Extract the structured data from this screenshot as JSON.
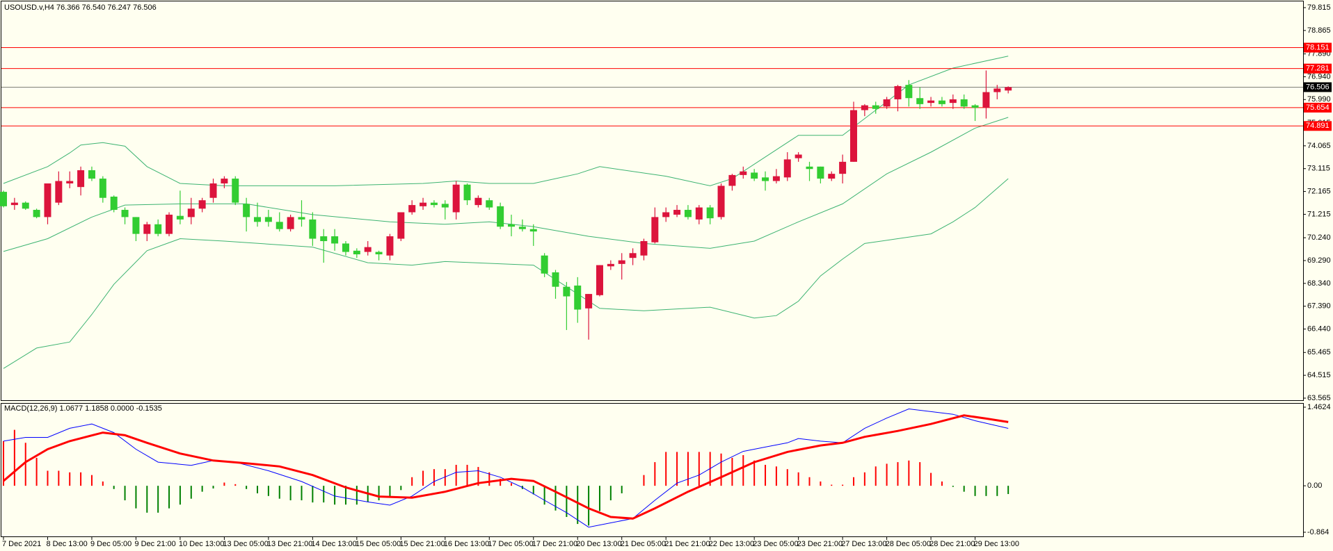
{
  "chart_data": [
    {
      "type": "candlestick",
      "title": "USOUSD.v,H4  76.366 76.540 76.247 76.506",
      "categories": [
        "7 Dec 2021",
        null,
        null,
        null,
        "8 Dec 13:00",
        null,
        null,
        null,
        "9 Dec 05:00",
        null,
        null,
        null,
        "9 Dec 21:00",
        null,
        null,
        null,
        "10 Dec 13:00",
        null,
        null,
        null,
        "13 Dec 05:00",
        null,
        null,
        null,
        "13 Dec 21:00",
        null,
        null,
        null,
        "14 Dec 13:00",
        null,
        null,
        null,
        "15 Dec 05:00",
        null,
        null,
        null,
        "15 Dec 21:00",
        null,
        null,
        null,
        "16 Dec 13:00",
        null,
        null,
        null,
        "17 Dec 05:00",
        null,
        null,
        null,
        "17 Dec 21:00",
        null,
        null,
        null,
        "20 Dec 13:00",
        null,
        null,
        null,
        "21 Dec 05:00",
        null,
        null,
        null,
        "21 Dec 21:00",
        null,
        null,
        null,
        "22 Dec 13:00",
        null,
        null,
        null,
        "23 Dec 05:00",
        null,
        null,
        null,
        "23 Dec 21:00",
        null,
        null,
        null,
        "27 Dec 13:00",
        null,
        null,
        null,
        "28 Dec 05:00",
        null,
        null,
        null,
        "28 Dec 21:00",
        null,
        null,
        null,
        "29 Dec 13:00",
        null,
        null,
        null
      ],
      "open": [
        72.15,
        71.6,
        71.7,
        71.4,
        71.1,
        71.7,
        72.5,
        72.35,
        73.05,
        72.7,
        71.95,
        71.4,
        71.1,
        70.4,
        70.8,
        70.4,
        71.15,
        71.1,
        71.45,
        71.9,
        72.5,
        72.7,
        71.65,
        71.1,
        71.1,
        70.9,
        70.6,
        71.1,
        71.0,
        70.3,
        70.3,
        70.0,
        69.7,
        69.65,
        69.65,
        69.5,
        70.2,
        71.3,
        71.55,
        71.7,
        71.65,
        71.3,
        72.45,
        71.6,
        71.8,
        71.55,
        70.8,
        70.7,
        70.6,
        69.5,
        68.8,
        68.2,
        68.25,
        67.3,
        67.85,
        69.05,
        69.15,
        69.4,
        69.5,
        70.05,
        71.1,
        71.2,
        71.4,
        71.0,
        71.5,
        71.1,
        72.4,
        72.85,
        72.95,
        72.75,
        72.6,
        72.75,
        73.55,
        73.2,
        73.2,
        72.7,
        72.9,
        73.4,
        75.55,
        75.75,
        75.7,
        76.0,
        76.6,
        76.05,
        75.85,
        75.95,
        75.85,
        76.0,
        75.75,
        75.65,
        76.3,
        76.366
      ],
      "high": [
        72.2,
        71.9,
        71.75,
        71.45,
        72.5,
        73.0,
        73.0,
        73.2,
        73.2,
        72.8,
        72.0,
        71.5,
        71.1,
        70.9,
        71.0,
        71.3,
        72.2,
        71.9,
        71.9,
        72.7,
        72.8,
        72.8,
        71.9,
        71.7,
        71.4,
        71.3,
        71.2,
        71.8,
        71.3,
        70.6,
        70.6,
        70.1,
        69.8,
        70.1,
        69.7,
        70.4,
        71.3,
        71.8,
        71.9,
        71.8,
        71.8,
        72.6,
        72.5,
        72.0,
        71.9,
        71.7,
        71.2,
        71.0,
        70.8,
        69.6,
        68.9,
        68.4,
        68.6,
        67.9,
        69.1,
        69.3,
        69.6,
        69.8,
        70.2,
        71.5,
        71.5,
        71.6,
        71.6,
        71.6,
        71.6,
        72.5,
        72.9,
        73.2,
        73.1,
        73.0,
        73.1,
        73.8,
        73.8,
        73.4,
        73.2,
        73.0,
        73.7,
        75.9,
        75.8,
        75.9,
        76.1,
        76.6,
        76.8,
        76.5,
        76.1,
        76.1,
        76.2,
        76.2,
        75.8,
        77.2,
        76.6,
        76.54
      ],
      "low": [
        71.5,
        71.4,
        71.4,
        71.05,
        70.8,
        71.6,
        72.3,
        72.0,
        72.6,
        71.7,
        71.3,
        70.8,
        70.1,
        70.1,
        70.3,
        70.3,
        70.8,
        70.8,
        71.3,
        71.7,
        72.3,
        71.6,
        70.5,
        70.7,
        70.7,
        70.5,
        70.5,
        70.7,
        69.9,
        69.2,
        69.7,
        69.5,
        69.4,
        69.5,
        69.3,
        69.3,
        70.1,
        71.2,
        71.4,
        71.5,
        71.0,
        71.0,
        71.6,
        71.5,
        71.4,
        70.6,
        70.3,
        70.5,
        69.9,
        68.6,
        67.7,
        66.4,
        66.7,
        66.0,
        67.8,
        68.9,
        68.5,
        69.1,
        69.3,
        70.0,
        70.9,
        71.1,
        71.0,
        70.8,
        70.8,
        71.0,
        72.2,
        72.7,
        72.6,
        72.2,
        72.5,
        72.6,
        73.4,
        72.6,
        72.5,
        72.6,
        72.5,
        73.4,
        75.3,
        75.4,
        75.6,
        75.5,
        75.7,
        75.6,
        75.7,
        75.7,
        75.6,
        75.6,
        75.1,
        75.2,
        76.0,
        76.247
      ],
      "close": [
        71.55,
        71.7,
        71.45,
        71.1,
        72.5,
        72.6,
        72.6,
        73.05,
        72.7,
        71.9,
        71.4,
        71.1,
        70.4,
        70.8,
        70.4,
        71.2,
        71.0,
        71.45,
        71.8,
        72.5,
        72.7,
        71.7,
        71.1,
        70.9,
        70.9,
        70.6,
        71.1,
        71.0,
        70.2,
        70.1,
        70.0,
        69.65,
        69.55,
        69.85,
        69.55,
        70.3,
        71.3,
        71.6,
        71.7,
        71.6,
        71.5,
        72.45,
        71.8,
        71.9,
        71.5,
        70.7,
        70.7,
        70.6,
        70.5,
        68.75,
        68.2,
        67.8,
        67.25,
        67.9,
        69.1,
        69.15,
        69.3,
        69.6,
        70.1,
        71.1,
        71.3,
        71.4,
        71.1,
        71.5,
        71.05,
        72.4,
        72.85,
        73.0,
        72.7,
        72.6,
        72.8,
        73.5,
        73.7,
        73.1,
        72.7,
        72.9,
        73.4,
        75.55,
        75.75,
        75.6,
        76.0,
        76.55,
        76.05,
        75.8,
        75.95,
        75.8,
        76.0,
        75.7,
        75.65,
        76.3,
        76.45,
        76.506
      ],
      "up_color": "#dc143c",
      "down_color": "#32cd32",
      "lines": [
        {
          "color": "#3cb371",
          "x": [
            0,
            4,
            6,
            7,
            9,
            11,
            13,
            16,
            20,
            30,
            38,
            41,
            44,
            48,
            52,
            54,
            60,
            64,
            66,
            69,
            72,
            76,
            78,
            80,
            82,
            86,
            91
          ],
          "values": [
            72.5,
            73.2,
            73.77,
            74.1,
            74.2,
            74.05,
            73.2,
            72.5,
            72.4,
            72.4,
            72.5,
            72.6,
            72.5,
            72.5,
            72.9,
            73.2,
            72.8,
            72.4,
            72.7,
            73.6,
            74.5,
            74.5,
            75.2,
            75.9,
            76.6,
            77.3,
            77.8
          ]
        },
        {
          "color": "#3cb371",
          "x": [
            0,
            4,
            8,
            11,
            16,
            22,
            28,
            35,
            40,
            44,
            48,
            53,
            58,
            64,
            68,
            72,
            76,
            80,
            84,
            88,
            91
          ],
          "values": [
            69.67,
            70.2,
            71.1,
            71.6,
            71.65,
            71.65,
            71.2,
            70.9,
            70.8,
            70.9,
            70.7,
            70.3,
            70.0,
            69.8,
            70.1,
            70.9,
            71.65,
            72.9,
            73.8,
            74.8,
            75.25
          ]
        },
        {
          "color": "#3cb371",
          "x": [
            0,
            3,
            6,
            8,
            10,
            13,
            16,
            20,
            28,
            33,
            37,
            40,
            48,
            50,
            54,
            58,
            64,
            68,
            70,
            72,
            74,
            76,
            78,
            81,
            84,
            86,
            88,
            91
          ],
          "values": [
            64.8,
            65.65,
            65.9,
            67.05,
            68.3,
            69.7,
            70.2,
            70.1,
            69.85,
            69.2,
            69.1,
            69.25,
            69.1,
            68.5,
            67.3,
            67.2,
            67.35,
            66.9,
            67.0,
            67.6,
            68.65,
            69.35,
            70.0,
            70.2,
            70.4,
            70.9,
            71.5,
            72.7
          ]
        }
      ],
      "levels": [
        {
          "value": 78.151,
          "color": "#ff0000"
        },
        {
          "value": 77.281,
          "color": "#ff0000"
        },
        {
          "value": 76.506,
          "color": "#000000"
        },
        {
          "value": 75.654,
          "color": "#ff0000"
        },
        {
          "value": 74.891,
          "color": "#ff0000"
        }
      ],
      "ylim": [
        63.565,
        79.815
      ],
      "yticks": [
        79.815,
        78.865,
        {
          "value": 77.89,
          "label": "77.890"
        },
        {
          "value": 76.94,
          "label": "76.940"
        },
        {
          "value": 75.99,
          "label": "75.990"
        },
        75.015,
        74.065,
        73.115,
        72.165,
        71.215,
        {
          "value": 70.24,
          "label": "70.240"
        },
        {
          "value": 69.29,
          "label": "69.290"
        },
        {
          "value": 68.34,
          "label": "68.340"
        },
        {
          "value": 67.39,
          "label": "67.390"
        },
        {
          "value": 66.44,
          "label": "66.440"
        },
        65.465,
        64.515,
        63.565
      ]
    },
    {
      "type": "macd",
      "title": "MACD(12,26,9) 1.0677 1.1858 0.0000 -0.1535",
      "histogram": [
        0.83,
        1.04,
        0.8,
        0.52,
        0.28,
        0.28,
        0.25,
        0.25,
        0.2,
        0.08,
        -0.06,
        -0.27,
        -0.42,
        -0.5,
        -0.5,
        -0.42,
        -0.35,
        -0.24,
        -0.11,
        -0.05,
        0.06,
        0.03,
        -0.06,
        -0.14,
        -0.19,
        -0.24,
        -0.27,
        -0.27,
        -0.31,
        -0.31,
        -0.35,
        -0.35,
        -0.35,
        -0.3,
        -0.27,
        -0.22,
        -0.08,
        0.16,
        0.28,
        0.31,
        0.31,
        0.39,
        0.39,
        0.35,
        0.25,
        0.13,
        0.05,
        -0.06,
        -0.16,
        -0.35,
        -0.46,
        -0.58,
        -0.71,
        -0.74,
        -0.47,
        -0.27,
        -0.14,
        0,
        0.2,
        0.44,
        0.63,
        0.63,
        0.63,
        0.63,
        0.63,
        0.6,
        0.52,
        0.57,
        0.47,
        0.39,
        0.36,
        0.31,
        0.25,
        0.16,
        0.08,
        0.02,
        0.02,
        0.16,
        0.25,
        0.36,
        0.41,
        0.44,
        0.47,
        0.44,
        0.24,
        0.08,
        -0.02,
        -0.11,
        -0.19,
        -0.19,
        -0.19,
        -0.1535
      ],
      "positive_color": "#ff0000",
      "negative_color": "#008000",
      "lines": [
        {
          "color": "#0000ff",
          "width": 1,
          "x": [
            0,
            2,
            4,
            6,
            8,
            10,
            12,
            14,
            17,
            19,
            21,
            24,
            27,
            30,
            33,
            35,
            37,
            39,
            41,
            43,
            45,
            47,
            49,
            51,
            53,
            55,
            57,
            59,
            61,
            63,
            65,
            67,
            69,
            71,
            72,
            74,
            76,
            78,
            80,
            82,
            84,
            86,
            88,
            91
          ],
          "values": [
            0.83,
            0.9,
            0.9,
            1.07,
            1.15,
            0.99,
            0.68,
            0.44,
            0.38,
            0.47,
            0.44,
            0.28,
            0.08,
            -0.19,
            -0.3,
            -0.36,
            -0.19,
            0.08,
            0.25,
            0.28,
            0.16,
            -0.03,
            -0.27,
            -0.5,
            -0.77,
            -0.69,
            -0.61,
            -0.27,
            0.05,
            0.2,
            0.44,
            0.64,
            0.72,
            0.8,
            0.88,
            0.83,
            0.8,
            1.07,
            1.26,
            1.43,
            1.38,
            1.33,
            1.21,
            1.0677
          ]
        },
        {
          "color": "#ff0000",
          "width": 3,
          "x": [
            0,
            2,
            4,
            6,
            9,
            11,
            13,
            16,
            19,
            22,
            25,
            28,
            31,
            34,
            37,
            40,
            43,
            46,
            48,
            50,
            53,
            55,
            57,
            59,
            62,
            65,
            68,
            71,
            74,
            76,
            78,
            81,
            84,
            87,
            89,
            91
          ],
          "values": [
            0.09,
            0.44,
            0.68,
            0.83,
            0.99,
            0.94,
            0.8,
            0.6,
            0.47,
            0.42,
            0.36,
            0.2,
            -0.03,
            -0.2,
            -0.22,
            -0.11,
            0.05,
            0.13,
            0.09,
            -0.11,
            -0.42,
            -0.58,
            -0.61,
            -0.42,
            -0.11,
            0.16,
            0.44,
            0.63,
            0.75,
            0.8,
            0.91,
            1.02,
            1.15,
            1.31,
            1.25,
            1.1858
          ]
        }
      ],
      "ylim": [
        -0.864,
        1.4624
      ],
      "yticks": [
        1.4624,
        {
          "value": 0,
          "label": "0.00"
        },
        -0.864
      ]
    }
  ]
}
